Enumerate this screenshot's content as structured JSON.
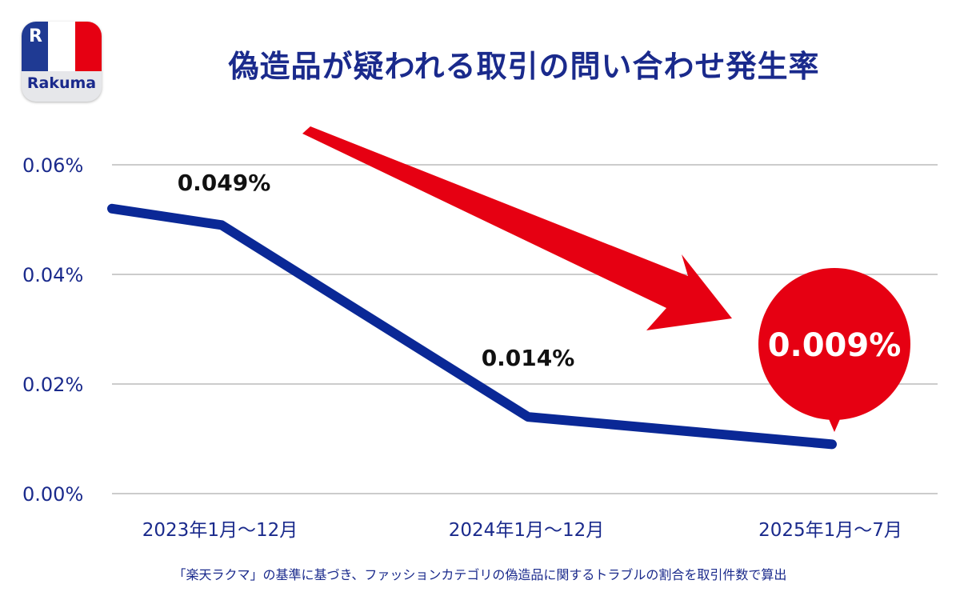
{
  "logo": {
    "text": "Rakuma",
    "mark": "R",
    "flag_colors": [
      "#1f3a93",
      "#ffffff",
      "#e60012"
    ]
  },
  "title": "偽造品が疑われる取引の問い合わせ発生率",
  "footnote": "「楽天ラクマ」の基準に基づき、ファッションカテゴリの偽造品に関するトラブルの割合を取引件数で算出",
  "chart_data": {
    "type": "line",
    "categories": [
      "2023年1月～12月",
      "2024年1月～12月",
      "2025年1月～7月"
    ],
    "series": [
      {
        "values": [
          0.049,
          0.014,
          0.009
        ]
      }
    ],
    "leading_value": 0.052,
    "data_labels": [
      "0.049%",
      "0.014%",
      "0.009%"
    ],
    "highlight_label": "0.009%",
    "y_ticks": [
      "0.00%",
      "0.02%",
      "0.04%",
      "0.06%"
    ],
    "y_tick_values": [
      0,
      0.02,
      0.04,
      0.06
    ],
    "ylim": [
      0,
      0.06
    ],
    "grid": true,
    "colors": {
      "line": "#0a2896",
      "arrow": "#e60012",
      "axis_text": "#1a2a8c",
      "grid": "#cccccc"
    }
  }
}
